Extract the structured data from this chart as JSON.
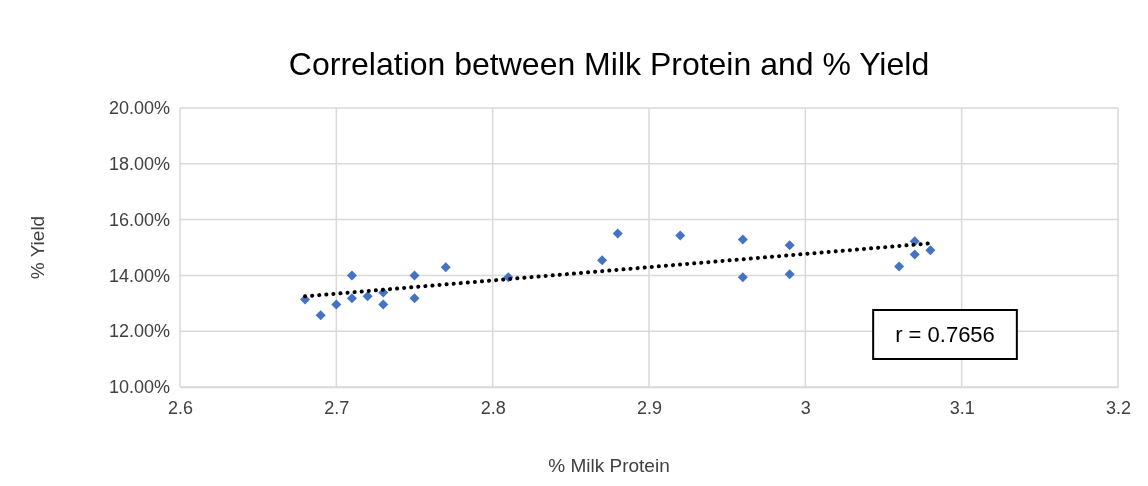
{
  "chart_data": {
    "type": "scatter",
    "title": "Correlation between Milk Protein and % Yield",
    "xlabel": "% Milk Protein",
    "ylabel": "% Yield",
    "xlim": [
      2.6,
      3.2
    ],
    "xticks": [
      2.6,
      2.7,
      2.8,
      2.9,
      {
        "value": 3,
        "label": "3"
      },
      3.1,
      3.2
    ],
    "ylim": [
      10,
      20
    ],
    "yticks": [
      {
        "value": 10,
        "label": "10.00%"
      },
      {
        "value": 12,
        "label": "12.00%"
      },
      {
        "value": 14,
        "label": "14.00%"
      },
      {
        "value": 16,
        "label": "16.00%"
      },
      {
        "value": 18,
        "label": "18.00%"
      },
      {
        "value": 20,
        "label": "20.00%"
      }
    ],
    "grid": true,
    "marker": "diamond",
    "series": [
      {
        "color": "#4472c4",
        "x": [
          2.68,
          2.69,
          2.7,
          2.71,
          2.71,
          2.72,
          2.73,
          2.73,
          2.75,
          2.75,
          2.77,
          2.81,
          2.87,
          2.88,
          2.92,
          2.96,
          2.96,
          2.99,
          2.99,
          3.06,
          3.07,
          3.07,
          3.08
        ],
        "values": [
          13.14,
          12.57,
          12.96,
          14.0,
          13.18,
          13.25,
          13.39,
          12.96,
          14.0,
          13.18,
          14.29,
          13.93,
          14.54,
          15.5,
          15.43,
          15.29,
          13.93,
          15.08,
          14.04,
          14.32,
          15.22,
          14.75,
          14.9
        ]
      },
      {
        "type": "line",
        "color": "#000000",
        "line_style": "dotted",
        "marker": "none",
        "x": [
          2.68,
          3.08
        ],
        "values": [
          13.25,
          15.15
        ]
      }
    ],
    "annotations": [
      "r = 0.7656"
    ]
  }
}
